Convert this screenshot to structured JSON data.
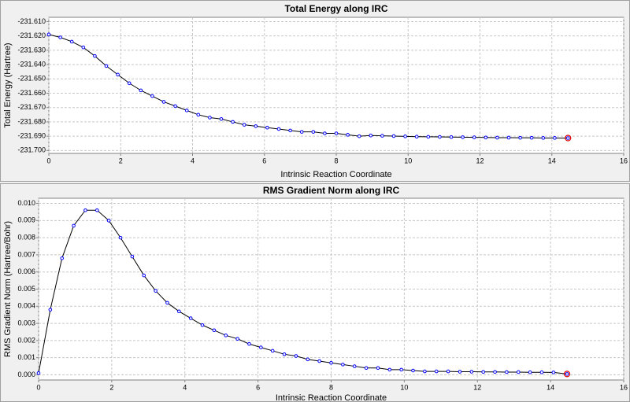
{
  "chart_data": [
    {
      "type": "line",
      "title": "Total Energy along IRC",
      "x_label": "Intrinsic Reaction Coordinate",
      "y_label": "Total Energy (Hartree)",
      "x": [
        0,
        0.32,
        0.64,
        0.96,
        1.28,
        1.6,
        1.92,
        2.24,
        2.56,
        2.88,
        3.2,
        3.52,
        3.84,
        4.16,
        4.48,
        4.8,
        5.12,
        5.44,
        5.76,
        6.08,
        6.4,
        6.72,
        7.04,
        7.36,
        7.68,
        8,
        8.32,
        8.64,
        8.96,
        9.28,
        9.6,
        9.92,
        10.24,
        10.56,
        10.88,
        11.2,
        11.52,
        11.84,
        12.16,
        12.48,
        12.8,
        13.12,
        13.44,
        13.76,
        14.08,
        14.45
      ],
      "values": [
        -231.619,
        -231.621,
        -231.624,
        -231.628,
        -231.634,
        -231.641,
        -231.647,
        -231.653,
        -231.658,
        -231.662,
        -231.666,
        -231.669,
        -231.672,
        -231.675,
        -231.677,
        -231.678,
        -231.68,
        -231.682,
        -231.683,
        -231.684,
        -231.685,
        -231.686,
        -231.687,
        -231.687,
        -231.688,
        -231.688,
        -231.689,
        -231.69,
        -231.6895,
        -231.6897,
        -231.6899,
        -231.6901,
        -231.6903,
        -231.6904,
        -231.6905,
        -231.6906,
        -231.6907,
        -231.6908,
        -231.6909,
        -231.691,
        -231.691,
        -231.6911,
        -231.6911,
        -231.6912,
        -231.6912,
        -231.6913
      ],
      "color": "#000000",
      "marker_color": "#0000ff",
      "last_point_color": "#e00000",
      "xlim": [
        0,
        16
      ],
      "xticks": [
        0,
        2,
        4,
        6,
        8,
        10,
        12,
        14,
        16
      ],
      "ylim": [
        -231.702,
        -231.607
      ],
      "yticks": [
        {
          "value": -231.61,
          "label": "-231.610"
        },
        {
          "value": -231.62,
          "label": "-231.620"
        },
        {
          "value": -231.63,
          "label": "-231.630"
        },
        {
          "value": -231.64,
          "label": "-231.640"
        },
        {
          "value": -231.65,
          "label": "-231.650"
        },
        {
          "value": -231.66,
          "label": "-231.660"
        },
        {
          "value": -231.67,
          "label": "-231.670"
        },
        {
          "value": -231.68,
          "label": "-231.680"
        },
        {
          "value": -231.69,
          "label": "-231.690"
        },
        {
          "value": -231.7,
          "label": "-231.700"
        }
      ],
      "grid": true
    },
    {
      "type": "line",
      "title": "RMS Gradient Norm along IRC",
      "x_label": "Intrinsic Reaction Coordinate",
      "y_label": "RMS Gradient Norm (Hartree/Bohr)",
      "x": [
        0,
        0.32,
        0.64,
        0.96,
        1.28,
        1.6,
        1.92,
        2.24,
        2.56,
        2.88,
        3.2,
        3.52,
        3.84,
        4.16,
        4.48,
        4.8,
        5.12,
        5.44,
        5.76,
        6.08,
        6.4,
        6.72,
        7.04,
        7.36,
        7.68,
        8,
        8.32,
        8.64,
        8.96,
        9.28,
        9.6,
        9.92,
        10.24,
        10.56,
        10.88,
        11.2,
        11.52,
        11.84,
        12.16,
        12.48,
        12.8,
        13.12,
        13.44,
        13.76,
        14.08,
        14.45
      ],
      "values": [
        0.0001,
        0.0038,
        0.0068,
        0.0087,
        0.0096,
        0.0096,
        0.009,
        0.008,
        0.0069,
        0.0058,
        0.0049,
        0.0042,
        0.0037,
        0.0033,
        0.0029,
        0.0026,
        0.0023,
        0.0021,
        0.0018,
        0.0016,
        0.0014,
        0.0012,
        0.0011,
        0.0009,
        0.0008,
        0.0007,
        0.0006,
        0.0005,
        0.0004,
        0.0004,
        0.0003,
        0.0003,
        0.00025,
        0.0002,
        0.0002,
        0.0002,
        0.00018,
        0.00018,
        0.00017,
        0.00017,
        0.00016,
        0.00016,
        0.00015,
        0.00015,
        0.00014,
        5e-05
      ],
      "color": "#000000",
      "marker_color": "#0000ff",
      "last_point_color": "#e00000",
      "xlim": [
        0,
        16
      ],
      "xticks": [
        0,
        2,
        4,
        6,
        8,
        10,
        12,
        14,
        16
      ],
      "ylim": [
        -0.0003,
        0.0103
      ],
      "yticks": [
        {
          "value": 0,
          "label": "0.000"
        },
        {
          "value": 0.001,
          "label": "0.001"
        },
        {
          "value": 0.002,
          "label": "0.002"
        },
        {
          "value": 0.003,
          "label": "0.003"
        },
        {
          "value": 0.004,
          "label": "0.004"
        },
        {
          "value": 0.005,
          "label": "0.005"
        },
        {
          "value": 0.006,
          "label": "0.006"
        },
        {
          "value": 0.007,
          "label": "0.007"
        },
        {
          "value": 0.008,
          "label": "0.008"
        },
        {
          "value": 0.009,
          "label": "0.009"
        },
        {
          "value": 0.01,
          "label": "0.010"
        }
      ],
      "grid": true
    }
  ]
}
